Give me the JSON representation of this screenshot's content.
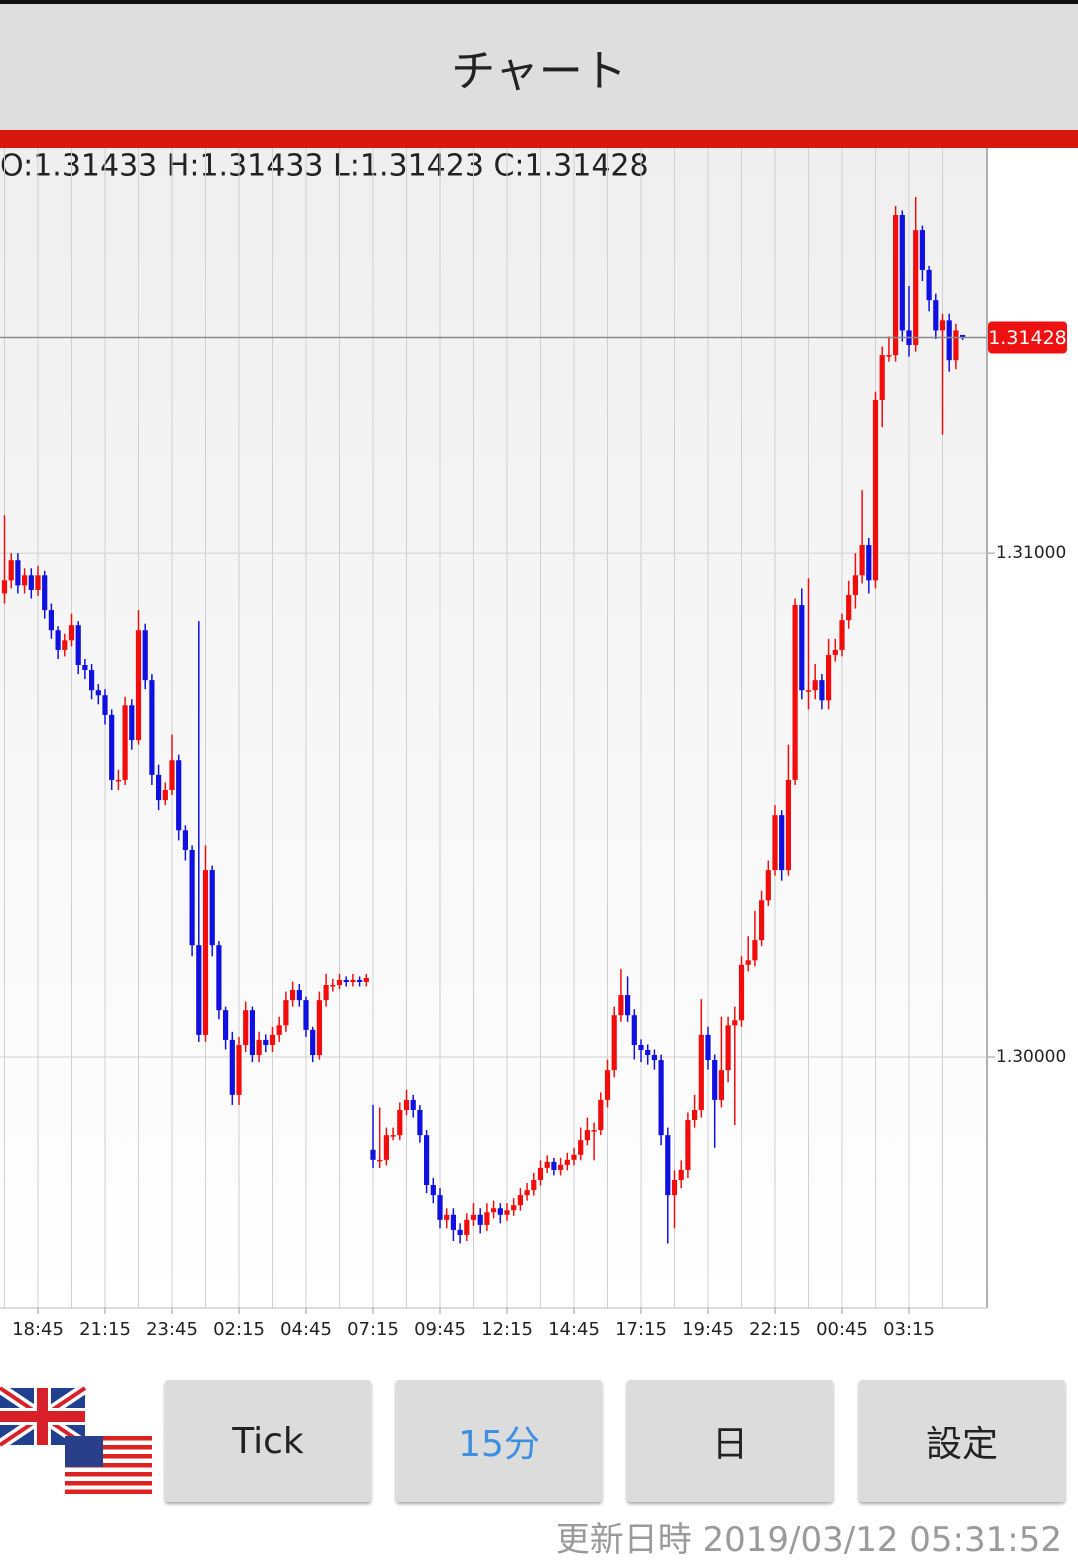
{
  "header": {
    "title": "チャート"
  },
  "ohlc_text": "O:1.31433 H:1.31433 L:1.31423 C:1.31428",
  "chart_data": {
    "type": "candlestick",
    "categories": [
      null,
      null,
      null,
      null,
      null,
      "18:45",
      null,
      null,
      null,
      null,
      null,
      null,
      null,
      null,
      null,
      "21:15",
      null,
      null,
      null,
      null,
      null,
      null,
      null,
      null,
      null,
      "23:45",
      null,
      null,
      null,
      null,
      null,
      null,
      null,
      null,
      null,
      "02:15",
      null,
      null,
      null,
      null,
      null,
      null,
      null,
      null,
      null,
      "04:45",
      null,
      null,
      null,
      null,
      null,
      null,
      null,
      null,
      null,
      "07:15",
      null,
      null,
      null,
      null,
      null,
      null,
      null,
      null,
      null,
      "09:45",
      null,
      null,
      null,
      null,
      null,
      null,
      null,
      null,
      null,
      "12:15",
      null,
      null,
      null,
      null,
      null,
      null,
      null,
      null,
      null,
      "14:45",
      null,
      null,
      null,
      null,
      null,
      null,
      null,
      null,
      null,
      "17:15",
      null,
      null,
      null,
      null,
      null,
      null,
      null,
      null,
      null,
      "19:45",
      null,
      null,
      null,
      null,
      null,
      null,
      null,
      null,
      null,
      "22:15",
      null,
      null,
      null,
      null,
      null,
      null,
      null,
      null,
      null,
      "00:45",
      null,
      null,
      null,
      null,
      null,
      null,
      null,
      null,
      null,
      "03:15",
      null,
      null,
      null,
      null,
      null,
      null,
      null,
      null
    ],
    "open": [
      1.3092,
      1.30946,
      1.30986,
      1.30936,
      1.30956,
      1.30927,
      1.30956,
      1.30887,
      1.30847,
      1.30808,
      1.30827,
      1.30857,
      1.30778,
      1.30768,
      1.30728,
      1.30718,
      1.30679,
      1.3055,
      1.3055,
      1.30698,
      1.30629,
      1.30847,
      1.30748,
      1.3056,
      1.3051,
      1.3053,
      1.30589,
      1.3045,
      1.30411,
      1.30222,
      1.30044,
      1.30371,
      1.30222,
      1.30093,
      1.30034,
      1.29925,
      1.30024,
      1.30093,
      1.30004,
      1.30034,
      1.30024,
      1.30044,
      1.30063,
      1.30113,
      1.30133,
      1.30113,
      1.30054,
      1.30004,
      1.30113,
      1.30143,
      1.30143,
      1.30153,
      1.30149,
      1.30153,
      1.30149,
      1.29816,
      1.29796,
      1.29796,
      1.29845,
      1.29845,
      1.29895,
      1.29915,
      1.29895,
      1.29845,
      1.29746,
      1.29726,
      1.29677,
      1.29687,
      1.29657,
      1.29647,
      1.29677,
      1.29687,
      1.29667,
      1.29692,
      1.297,
      1.29687,
      1.29696,
      1.29706,
      1.29726,
      1.29736,
      1.29756,
      1.2978,
      1.29792,
      1.29776,
      1.29786,
      1.29796,
      1.29806,
      1.29835,
      1.29855,
      1.29855,
      1.29915,
      1.29974,
      1.30083,
      1.30123,
      1.30083,
      1.30024,
      1.30014,
      1.30004,
      1.29994,
      1.29845,
      1.29726,
      1.29756,
      1.29776,
      1.29875,
      1.29895,
      1.30044,
      1.29994,
      1.29915,
      1.29974,
      1.30063,
      1.30073,
      1.30183,
      1.30192,
      1.30232,
      1.30311,
      1.30371,
      1.3048,
      1.30371,
      1.3055,
      1.30897,
      1.30728,
      1.30728,
      1.30748,
      1.30708,
      1.30798,
      1.30808,
      1.30867,
      1.30917,
      1.30956,
      1.31016,
      1.30946,
      1.31304,
      1.31393,
      1.31393,
      1.31671,
      1.31442,
      1.31413,
      1.31641,
      1.31562,
      1.31502,
      1.31442,
      1.31462,
      1.31383,
      1.31433
    ],
    "high": [
      1.31075,
      1.31,
      1.31,
      1.3097,
      1.3097,
      1.30975,
      1.30965,
      1.309,
      1.30855,
      1.3084,
      1.3088,
      1.30865,
      1.3079,
      1.3078,
      1.3074,
      1.3073,
      1.3069,
      1.3057,
      1.30715,
      1.3071,
      1.30887,
      1.3086,
      1.3076,
      1.3058,
      1.30545,
      1.3064,
      1.306,
      1.3046,
      1.3042,
      1.30865,
      1.3042,
      1.3038,
      1.3023,
      1.301,
      1.3005,
      1.3004,
      1.3011,
      1.301,
      1.3005,
      1.30045,
      1.3006,
      1.3008,
      1.3013,
      1.3015,
      1.30145,
      1.3012,
      1.3006,
      1.3013,
      1.30165,
      1.30155,
      1.30165,
      1.3016,
      1.30165,
      1.3016,
      1.30165,
      1.29905,
      1.299,
      1.2986,
      1.2986,
      1.2991,
      1.29935,
      1.29925,
      1.29905,
      1.29855,
      1.2976,
      1.2974,
      1.297,
      1.297,
      1.2967,
      1.2969,
      1.2971,
      1.297,
      1.2971,
      1.29715,
      1.2971,
      1.2971,
      1.2972,
      1.2974,
      1.2975,
      1.2977,
      1.29795,
      1.29805,
      1.298,
      1.298,
      1.2981,
      1.2982,
      1.2986,
      1.2988,
      1.2987,
      1.2993,
      1.29995,
      1.301,
      1.30175,
      1.3016,
      1.30095,
      1.30035,
      1.30025,
      1.30015,
      1.30005,
      1.2986,
      1.29775,
      1.29795,
      1.2989,
      1.29925,
      1.30115,
      1.3006,
      1.30005,
      1.3008,
      1.3008,
      1.301,
      1.302,
      1.3024,
      1.3029,
      1.3033,
      1.3039,
      1.305,
      1.3049,
      1.3062,
      1.3091,
      1.3093,
      1.3095,
      1.3078,
      1.3076,
      1.3083,
      1.3083,
      1.3088,
      1.30945,
      1.31,
      1.31125,
      1.3103,
      1.3132,
      1.3141,
      1.3143,
      1.31689,
      1.3168,
      1.3153,
      1.31707,
      1.3165,
      1.3157,
      1.31515,
      1.31475,
      1.31475,
      1.31455,
      1.31433
    ],
    "low": [
      1.309,
      1.3093,
      1.3092,
      1.3092,
      1.3091,
      1.30915,
      1.3087,
      1.3083,
      1.3079,
      1.30795,
      1.30815,
      1.3076,
      1.3075,
      1.3071,
      1.307,
      1.3066,
      1.3053,
      1.3053,
      1.3054,
      1.3061,
      1.3062,
      1.3073,
      1.3054,
      1.3049,
      1.305,
      1.3052,
      1.3043,
      1.3039,
      1.302,
      1.3003,
      1.3003,
      1.302,
      1.30075,
      1.30015,
      1.29905,
      1.29905,
      1.3001,
      1.2999,
      1.2999,
      1.3001,
      1.3001,
      1.3003,
      1.3005,
      1.301,
      1.301,
      1.3004,
      1.2999,
      1.29995,
      1.301,
      1.3013,
      1.30135,
      1.3014,
      1.3014,
      1.3014,
      1.3014,
      1.2978,
      1.2978,
      1.29785,
      1.29835,
      1.29835,
      1.29885,
      1.2988,
      1.2983,
      1.2973,
      1.2971,
      1.2966,
      1.2966,
      1.29635,
      1.2963,
      1.29635,
      1.29665,
      1.2965,
      1.29655,
      1.2968,
      1.2967,
      1.29675,
      1.29685,
      1.29695,
      1.29715,
      1.29725,
      1.29745,
      1.2977,
      1.29765,
      1.29765,
      1.29775,
      1.29785,
      1.29795,
      1.29825,
      1.29795,
      1.29845,
      1.299,
      1.2996,
      1.3007,
      1.3007,
      1.29995,
      1.2999,
      1.29985,
      1.29975,
      1.29825,
      1.2963,
      1.2966,
      1.2974,
      1.2976,
      1.2986,
      1.2988,
      1.29975,
      1.2982,
      1.299,
      1.2995,
      1.29865,
      1.3006,
      1.3017,
      1.3018,
      1.3022,
      1.303,
      1.3036,
      1.3035,
      1.3036,
      1.3054,
      1.3071,
      1.3069,
      1.3071,
      1.3069,
      1.3069,
      1.30785,
      1.30795,
      1.3085,
      1.3089,
      1.3094,
      1.3092,
      1.3093,
      1.3125,
      1.3138,
      1.3138,
      1.3142,
      1.3139,
      1.314,
      1.3154,
      1.3148,
      1.31425,
      1.31235,
      1.3136,
      1.31365,
      1.31423
    ],
    "close": [
      1.30946,
      1.30986,
      1.30936,
      1.30956,
      1.30927,
      1.30956,
      1.30887,
      1.30847,
      1.30808,
      1.30827,
      1.30857,
      1.30778,
      1.30768,
      1.30728,
      1.30718,
      1.30679,
      1.3055,
      1.3055,
      1.30698,
      1.30629,
      1.30847,
      1.30748,
      1.3056,
      1.3051,
      1.3053,
      1.30589,
      1.3045,
      1.30411,
      1.30222,
      1.30044,
      1.30371,
      1.30222,
      1.30093,
      1.30034,
      1.29925,
      1.30024,
      1.30093,
      1.30004,
      1.30034,
      1.30024,
      1.30044,
      1.30063,
      1.30113,
      1.30133,
      1.30113,
      1.30054,
      1.30004,
      1.30113,
      1.30143,
      1.30143,
      1.30153,
      1.30149,
      1.30153,
      1.30149,
      1.30157,
      1.29796,
      1.29796,
      1.29845,
      1.29845,
      1.29895,
      1.29915,
      1.29895,
      1.29845,
      1.29746,
      1.29726,
      1.29677,
      1.29687,
      1.29657,
      1.29647,
      1.29677,
      1.29687,
      1.29667,
      1.29692,
      1.297,
      1.29687,
      1.29696,
      1.29706,
      1.29726,
      1.29736,
      1.29756,
      1.2978,
      1.29792,
      1.29776,
      1.29786,
      1.29796,
      1.29806,
      1.29835,
      1.29855,
      1.29855,
      1.29915,
      1.29974,
      1.30083,
      1.30123,
      1.30083,
      1.30024,
      1.30014,
      1.30004,
      1.29994,
      1.29845,
      1.29726,
      1.29756,
      1.29776,
      1.29875,
      1.29895,
      1.30044,
      1.29994,
      1.29915,
      1.29974,
      1.30063,
      1.30073,
      1.30183,
      1.30192,
      1.30232,
      1.30311,
      1.30371,
      1.3048,
      1.30371,
      1.3055,
      1.30897,
      1.30728,
      1.30728,
      1.30748,
      1.30708,
      1.30798,
      1.30808,
      1.30867,
      1.30917,
      1.30956,
      1.31016,
      1.30946,
      1.31304,
      1.31393,
      1.31393,
      1.31671,
      1.31442,
      1.31413,
      1.31641,
      1.31562,
      1.31502,
      1.31442,
      1.31462,
      1.31383,
      1.31442,
      1.31428
    ],
    "up_color": "#f20d0d",
    "down_color": "#1010e0",
    "ylim": [
      1.29502,
      1.31804
    ],
    "yticks": [
      {
        "value": 1.3,
        "label": "1.30000"
      },
      {
        "value": 1.31,
        "label": "1.31000"
      }
    ],
    "current_price": 1.31428,
    "grid": true
  },
  "buttons": [
    "Tick",
    "15分",
    "日",
    "設定"
  ],
  "active_button": 1,
  "footer": "更新日時 2019/03/12 05:31:52"
}
